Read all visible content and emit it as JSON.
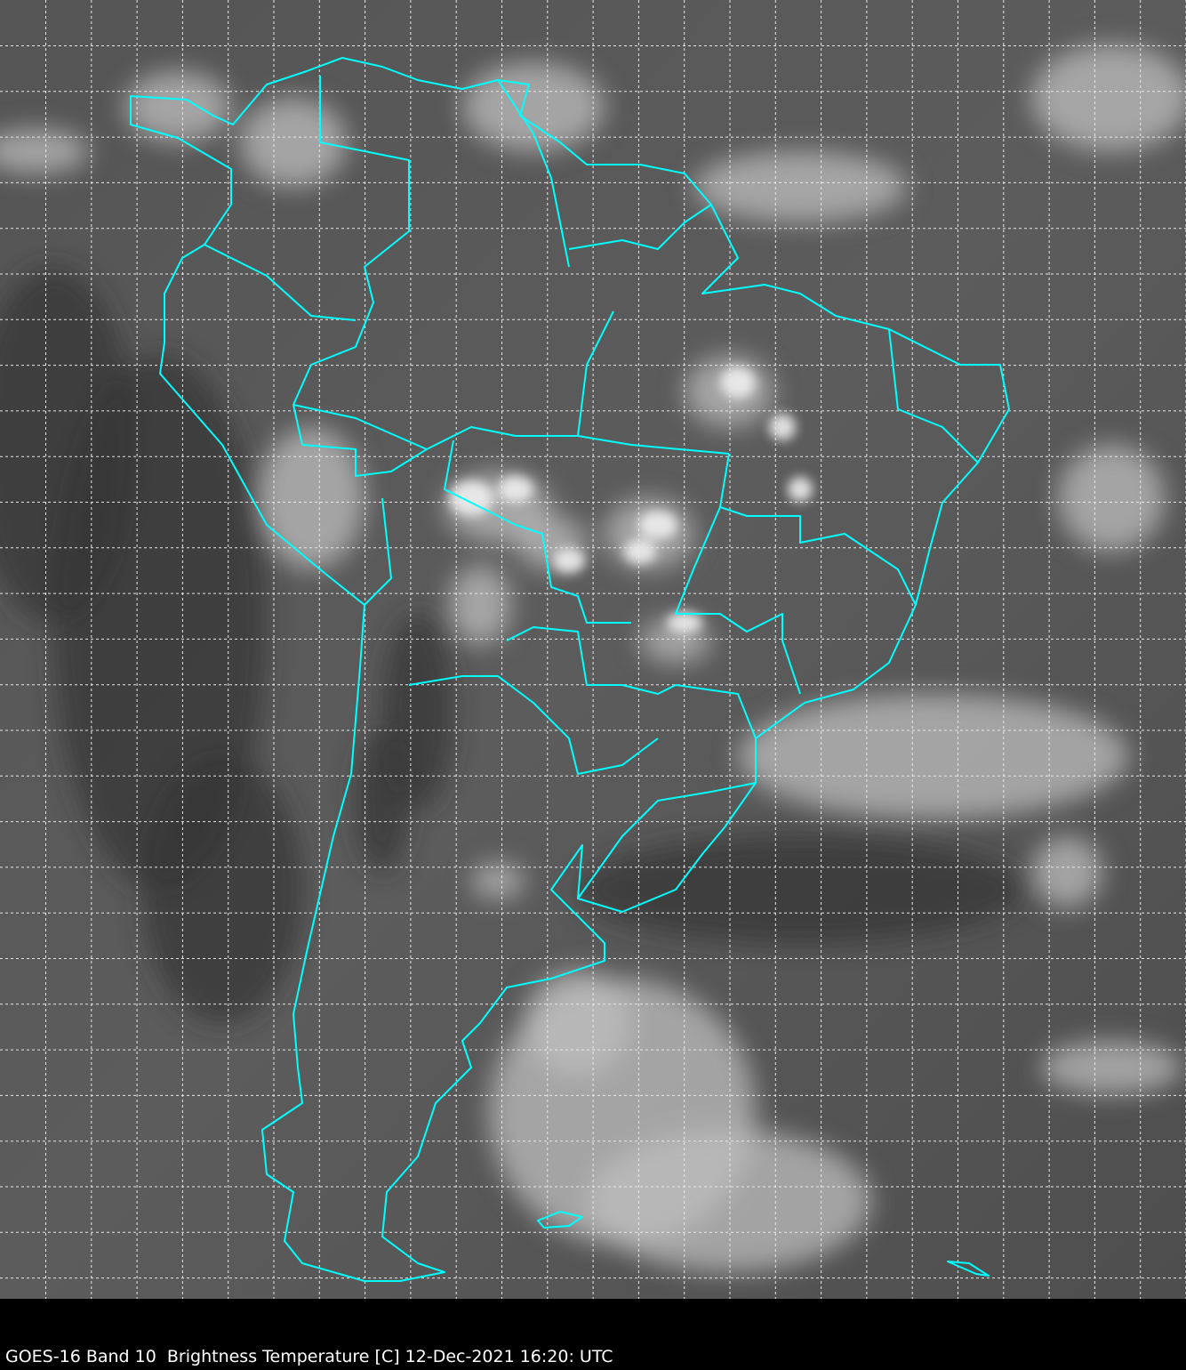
{
  "caption": "GOES-16 Band 10  Brightness Temperature [C] 12-Dec-2021 16:20: UTC",
  "map": {
    "satellite": "GOES-16",
    "band": "Band 10",
    "variable": "Brightness Temperature [C]",
    "datetime": "12-Dec-2021 16:20: UTC",
    "region": "South America",
    "grid": "dashed white lat/lon graticule",
    "colormap": "grayscale",
    "border_color": "#00ffff",
    "background_color": "#5a5a5a"
  }
}
